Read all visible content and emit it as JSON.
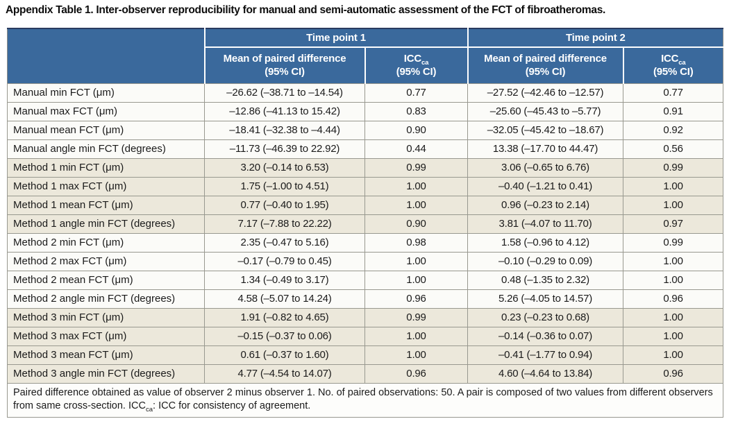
{
  "title": "Appendix Table 1. Inter-observer reproducibility for manual and semi-automatic assessment of the FCT of fibroatheromas.",
  "table": {
    "col_groups": [
      {
        "label": "Time point 1"
      },
      {
        "label": "Time point 2"
      }
    ],
    "sub_headers": {
      "mean_label": "Mean of paired difference",
      "ci_label": "(95% CI)",
      "icc_label": "ICC",
      "icc_sub": "ca"
    },
    "rows": [
      {
        "label": "Manual min FCT (μm)",
        "tp1_mean": "–26.62 (–38.71 to –14.54)",
        "tp1_icc": "0.77",
        "tp2_mean": "–27.52 (–42.46 to –12.57)",
        "tp2_icc": "0.77",
        "shaded": false
      },
      {
        "label": "Manual max FCT (μm)",
        "tp1_mean": "–12.86 (–41.13 to 15.42)",
        "tp1_icc": "0.83",
        "tp2_mean": "–25.60 (–45.43 to –5.77)",
        "tp2_icc": "0.91",
        "shaded": false
      },
      {
        "label": "Manual mean FCT (μm)",
        "tp1_mean": "–18.41 (–32.38 to –4.44)",
        "tp1_icc": "0.90",
        "tp2_mean": "–32.05 (–45.42 to –18.67)",
        "tp2_icc": "0.92",
        "shaded": false
      },
      {
        "label": "Manual angle min FCT (degrees)",
        "tp1_mean": "–11.73 (–46.39 to 22.92)",
        "tp1_icc": "0.44",
        "tp2_mean": "13.38 (–17.70 to 44.47)",
        "tp2_icc": "0.56",
        "shaded": false
      },
      {
        "label": "Method 1 min FCT (μm)",
        "tp1_mean": "3.20 (–0.14 to 6.53)",
        "tp1_icc": "0.99",
        "tp2_mean": "3.06 (–0.65 to 6.76)",
        "tp2_icc": "0.99",
        "shaded": true
      },
      {
        "label": "Method 1 max FCT (μm)",
        "tp1_mean": "1.75 (–1.00 to 4.51)",
        "tp1_icc": "1.00",
        "tp2_mean": "–0.40 (–1.21 to 0.41)",
        "tp2_icc": "1.00",
        "shaded": true
      },
      {
        "label": "Method 1 mean FCT (μm)",
        "tp1_mean": "0.77 (–0.40 to 1.95)",
        "tp1_icc": "1.00",
        "tp2_mean": "0.96 (–0.23 to 2.14)",
        "tp2_icc": "1.00",
        "shaded": true
      },
      {
        "label": "Method 1 angle min FCT (degrees)",
        "tp1_mean": "7.17 (–7.88 to 22.22)",
        "tp1_icc": "0.90",
        "tp2_mean": "3.81 (–4.07 to 11.70)",
        "tp2_icc": "0.97",
        "shaded": true
      },
      {
        "label": "Method 2 min FCT (μm)",
        "tp1_mean": "2.35 (–0.47 to 5.16)",
        "tp1_icc": "0.98",
        "tp2_mean": "1.58 (–0.96 to 4.12)",
        "tp2_icc": "0.99",
        "shaded": false
      },
      {
        "label": "Method 2 max FCT (μm)",
        "tp1_mean": "–0.17 (–0.79 to 0.45)",
        "tp1_icc": "1.00",
        "tp2_mean": "–0.10 (–0.29 to 0.09)",
        "tp2_icc": "1.00",
        "shaded": false
      },
      {
        "label": "Method 2 mean FCT (μm)",
        "tp1_mean": "1.34 (–0.49 to 3.17)",
        "tp1_icc": "1.00",
        "tp2_mean": "0.48 (–1.35 to 2.32)",
        "tp2_icc": "1.00",
        "shaded": false
      },
      {
        "label": "Method 2 angle min FCT (degrees)",
        "tp1_mean": "4.58 (–5.07 to 14.24)",
        "tp1_icc": "0.96",
        "tp2_mean": "5.26 (–4.05 to 14.57)",
        "tp2_icc": "0.96",
        "shaded": false
      },
      {
        "label": "Method 3 min FCT (μm)",
        "tp1_mean": "1.91 (–0.82 to 4.65)",
        "tp1_icc": "0.99",
        "tp2_mean": "0.23 (–0.23 to 0.68)",
        "tp2_icc": "1.00",
        "shaded": true
      },
      {
        "label": "Method 3 max FCT (μm)",
        "tp1_mean": "–0.15 (–0.37 to 0.06)",
        "tp1_icc": "1.00",
        "tp2_mean": "–0.14 (–0.36 to 0.07)",
        "tp2_icc": "1.00",
        "shaded": true
      },
      {
        "label": "Method 3 mean FCT (μm)",
        "tp1_mean": "0.61 (–0.37 to 1.60)",
        "tp1_icc": "1.00",
        "tp2_mean": "–0.41 (–1.77 to 0.94)",
        "tp2_icc": "1.00",
        "shaded": true
      },
      {
        "label": "Method 3 angle min FCT (degrees)",
        "tp1_mean": "4.77 (–4.54 to 14.07)",
        "tp1_icc": "0.96",
        "tp2_mean": "4.60 (–4.64 to 13.84)",
        "tp2_icc": "0.96",
        "shaded": true
      }
    ],
    "footnote": {
      "part1": "Paired difference obtained as value of observer 2 minus observer 1. No. of paired observations: 50. A pair is composed of two values from different observers from same cross-section. ICC",
      "sub": "ca",
      "part2": ": ICC for consistency of agreement."
    }
  },
  "colors": {
    "header_bg": "#3A699C",
    "header_text": "#FFFFFF",
    "row_cream": "#ECE8DB",
    "row_white": "#FBFBF8",
    "grid_line": "#98988F",
    "outer_border": "#8E8E88",
    "top_border": "#2A3B5F",
    "text": "#1A1A1A"
  }
}
